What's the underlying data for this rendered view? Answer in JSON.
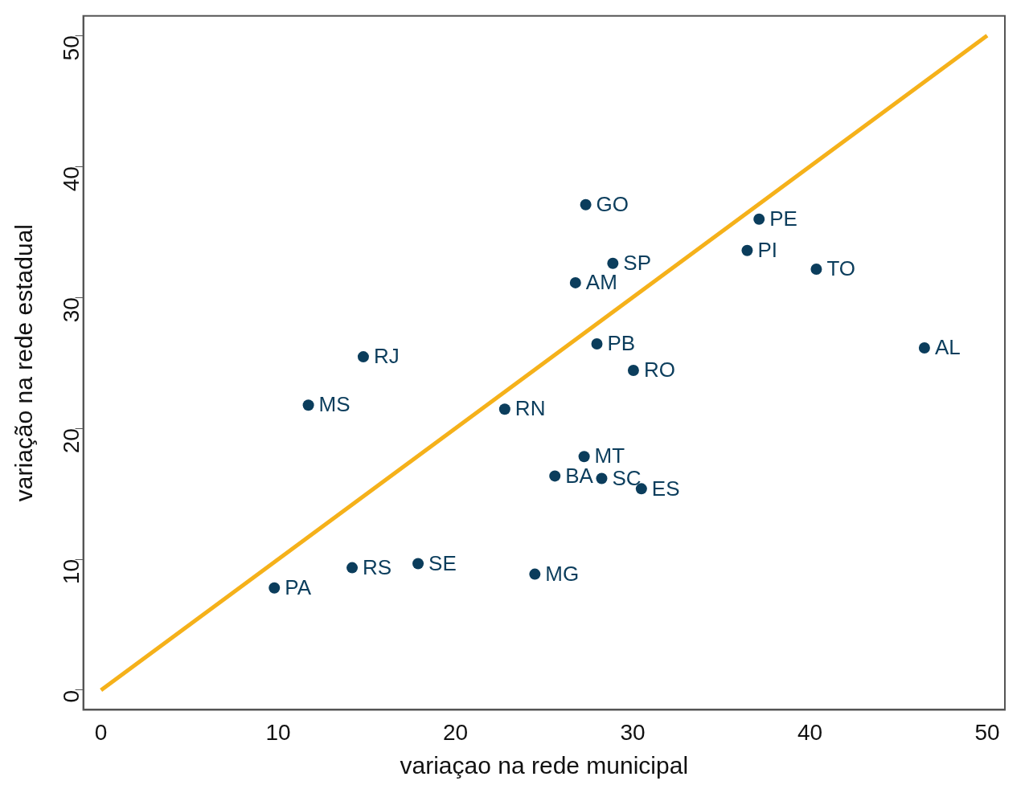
{
  "chart_data": {
    "type": "scatter",
    "xlabel": "variaçao na rede municipal",
    "ylabel": "variação na rede estadual",
    "xlim": [
      -1,
      51
    ],
    "ylim": [
      -1.5,
      51.5
    ],
    "xticks": [
      0,
      10,
      20,
      30,
      40,
      50
    ],
    "yticks": [
      0,
      10,
      20,
      30,
      40,
      50
    ],
    "grid": false,
    "legend": false,
    "marker": "circle",
    "series": [
      {
        "type": "line",
        "color": "#f5b11a",
        "marker": "none",
        "x": [
          0,
          50
        ],
        "values": [
          0,
          50
        ]
      },
      {
        "type": "scatter",
        "color": "#0b3d5c",
        "x": [
          27.35,
          37.13,
          36.46,
          40.36,
          28.88,
          26.77,
          27.98,
          30.04,
          46.46,
          14.8,
          11.7,
          22.78,
          27.26,
          25.61,
          28.25,
          30.49,
          17.89,
          14.17,
          24.48,
          9.78
        ],
        "values": [
          37.08,
          35.98,
          33.58,
          32.16,
          32.6,
          31.12,
          26.45,
          24.42,
          26.14,
          25.46,
          21.77,
          21.46,
          17.84,
          16.36,
          16.17,
          15.38,
          9.66,
          9.35,
          8.86,
          7.81
        ]
      }
    ],
    "annotations": [
      {
        "text": "GO",
        "x": 27.35,
        "y": 37.08
      },
      {
        "text": "PE",
        "x": 37.13,
        "y": 35.98
      },
      {
        "text": "PI",
        "x": 36.46,
        "y": 33.58
      },
      {
        "text": "TO",
        "x": 40.36,
        "y": 32.16
      },
      {
        "text": "SP",
        "x": 28.88,
        "y": 32.6
      },
      {
        "text": "AM",
        "x": 26.77,
        "y": 31.12
      },
      {
        "text": "PB",
        "x": 27.98,
        "y": 26.45
      },
      {
        "text": "RO",
        "x": 30.04,
        "y": 24.42
      },
      {
        "text": "AL",
        "x": 46.46,
        "y": 26.14
      },
      {
        "text": "RJ",
        "x": 14.8,
        "y": 25.46
      },
      {
        "text": "MS",
        "x": 11.7,
        "y": 21.77
      },
      {
        "text": "RN",
        "x": 22.78,
        "y": 21.46
      },
      {
        "text": "MT",
        "x": 27.26,
        "y": 17.84
      },
      {
        "text": "BA",
        "x": 25.61,
        "y": 16.36
      },
      {
        "text": "SC",
        "x": 28.25,
        "y": 16.17
      },
      {
        "text": "ES",
        "x": 30.49,
        "y": 15.38
      },
      {
        "text": "SE",
        "x": 17.89,
        "y": 9.66
      },
      {
        "text": "RS",
        "x": 14.17,
        "y": 9.35
      },
      {
        "text": "MG",
        "x": 24.48,
        "y": 8.86
      },
      {
        "text": "PA",
        "x": 9.78,
        "y": 7.81
      }
    ]
  }
}
